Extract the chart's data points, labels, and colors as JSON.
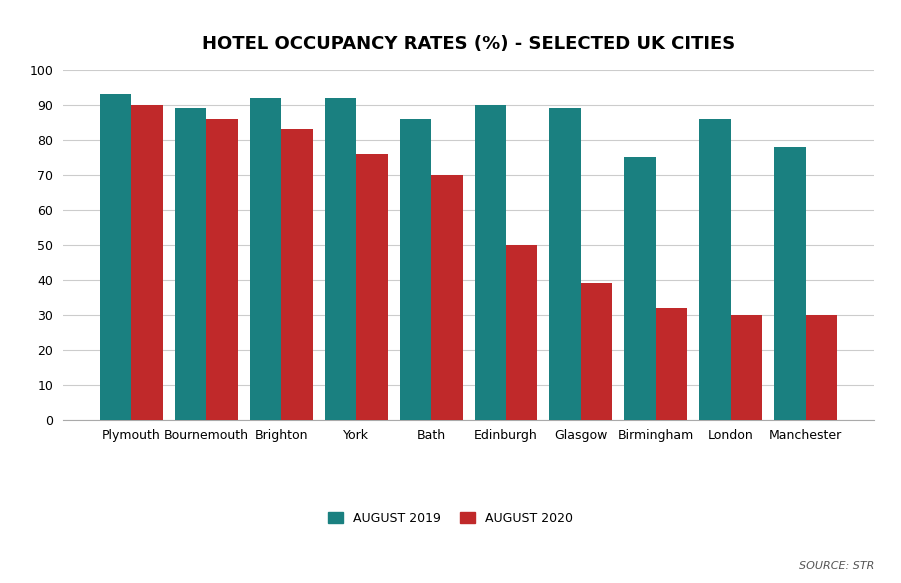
{
  "title": "HOTEL OCCUPANCY RATES (%) - SELECTED UK CITIES",
  "categories": [
    "Plymouth",
    "Bournemouth",
    "Brighton",
    "York",
    "Bath",
    "Edinburgh",
    "Glasgow",
    "Birmingham",
    "London",
    "Manchester"
  ],
  "august_2019": [
    93,
    89,
    92,
    92,
    86,
    90,
    89,
    75,
    86,
    78
  ],
  "august_2020": [
    90,
    86,
    83,
    76,
    70,
    50,
    39,
    32,
    30,
    30
  ],
  "color_2019": "#1a8080",
  "color_2020": "#c0292a",
  "ylim": [
    0,
    100
  ],
  "yticks": [
    0,
    10,
    20,
    30,
    40,
    50,
    60,
    70,
    80,
    90,
    100
  ],
  "legend_labels": [
    "AUGUST 2019",
    "AUGUST 2020"
  ],
  "source_text": "SOURCE: STR",
  "background_color": "#ffffff",
  "grid_color": "#cccccc",
  "title_fontsize": 13,
  "tick_fontsize": 9,
  "legend_fontsize": 9,
  "bar_width": 0.42
}
